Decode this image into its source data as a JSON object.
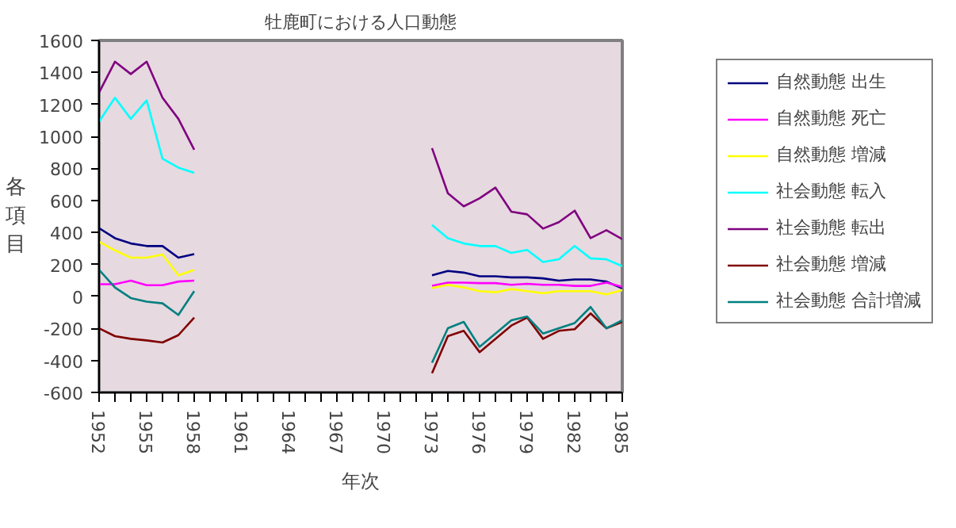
{
  "chart_data": {
    "type": "line",
    "title": "牡鹿町における人口動態",
    "xlabel": "年次",
    "ylabel": "各項目",
    "x": [
      1952,
      1953,
      1954,
      1955,
      1956,
      1957,
      1958,
      1959,
      1960,
      1961,
      1962,
      1963,
      1964,
      1965,
      1966,
      1967,
      1968,
      1969,
      1970,
      1971,
      1972,
      1973,
      1974,
      1975,
      1976,
      1977,
      1978,
      1979,
      1980,
      1981,
      1982,
      1983,
      1984,
      1985
    ],
    "xlim": [
      1952,
      1985
    ],
    "xticks": [
      1952,
      {
        "value": 1953,
        "label": null
      },
      {
        "value": 1954,
        "label": null
      },
      1955,
      {
        "value": 1956,
        "label": null
      },
      {
        "value": 1957,
        "label": null
      },
      1958,
      {
        "value": 1959,
        "label": null
      },
      {
        "value": 1960,
        "label": null
      },
      1961,
      {
        "value": 1962,
        "label": null
      },
      {
        "value": 1963,
        "label": null
      },
      1964,
      {
        "value": 1965,
        "label": null
      },
      {
        "value": 1966,
        "label": null
      },
      1967,
      {
        "value": 1968,
        "label": null
      },
      {
        "value": 1969,
        "label": null
      },
      1970,
      {
        "value": 1971,
        "label": null
      },
      {
        "value": 1972,
        "label": null
      },
      1973,
      {
        "value": 1974,
        "label": null
      },
      {
        "value": 1975,
        "label": null
      },
      1976,
      {
        "value": 1977,
        "label": null
      },
      {
        "value": 1978,
        "label": null
      },
      1979,
      {
        "value": 1980,
        "label": null
      },
      {
        "value": 1981,
        "label": null
      },
      1982,
      {
        "value": 1983,
        "label": null
      },
      {
        "value": 1984,
        "label": null
      },
      1985
    ],
    "ylim": [
      -600,
      1600
    ],
    "yticks": [
      -600,
      -400,
      -200,
      0,
      200,
      400,
      600,
      800,
      1000,
      1200,
      1400,
      1600
    ],
    "grid": false,
    "legend": "right",
    "series": [
      {
        "name": "自然動態 出生",
        "color": "#000080",
        "values": [
          427,
          364,
          331,
          315,
          315,
          242,
          265,
          null,
          null,
          null,
          null,
          null,
          null,
          null,
          null,
          null,
          null,
          null,
          null,
          null,
          null,
          132,
          159,
          149,
          126,
          126,
          119,
          119,
          113,
          99,
          106,
          106,
          93,
          50
        ]
      },
      {
        "name": "自然動態 死亡",
        "color": "#ff00ff",
        "values": [
          76,
          76,
          99,
          70,
          70,
          93,
          99,
          null,
          null,
          null,
          null,
          null,
          null,
          null,
          null,
          null,
          null,
          null,
          null,
          null,
          null,
          66,
          86,
          86,
          83,
          83,
          73,
          79,
          73,
          73,
          66,
          66,
          86,
          60
        ]
      },
      {
        "name": "自然動態 増減",
        "color": "#ffff00",
        "values": [
          341,
          288,
          242,
          242,
          262,
          132,
          166,
          null,
          null,
          null,
          null,
          null,
          null,
          null,
          null,
          null,
          null,
          null,
          null,
          null,
          null,
          53,
          73,
          56,
          33,
          26,
          46,
          33,
          20,
          33,
          33,
          33,
          13,
          40
        ]
      },
      {
        "name": "社会動態 転入",
        "color": "#00ffff",
        "values": [
          1093,
          1242,
          1110,
          1225,
          861,
          805,
          772,
          null,
          null,
          null,
          null,
          null,
          null,
          null,
          null,
          null,
          null,
          null,
          null,
          null,
          null,
          447,
          364,
          331,
          315,
          315,
          272,
          291,
          215,
          232,
          315,
          238,
          232,
          189
        ]
      },
      {
        "name": "社会動態 転出",
        "color": "#800080",
        "values": [
          1275,
          1467,
          1390,
          1467,
          1242,
          1110,
          917,
          null,
          null,
          null,
          null,
          null,
          null,
          null,
          null,
          null,
          null,
          null,
          null,
          null,
          null,
          927,
          645,
          563,
          613,
          680,
          530,
          513,
          424,
          464,
          536,
          364,
          414,
          358
        ]
      },
      {
        "name": "社会動態 増減",
        "color": "#800000",
        "values": [
          -199,
          -248,
          -265,
          -275,
          -288,
          -242,
          -132,
          null,
          null,
          null,
          null,
          null,
          null,
          null,
          null,
          null,
          null,
          null,
          null,
          null,
          null,
          -480,
          -248,
          -215,
          -348,
          -265,
          -182,
          -132,
          -265,
          -215,
          -205,
          -106,
          -199,
          -159
        ]
      },
      {
        "name": "社会動態 合計増減",
        "color": "#008080",
        "values": [
          166,
          56,
          -10,
          -33,
          -43,
          -116,
          33,
          null,
          null,
          null,
          null,
          null,
          null,
          null,
          null,
          null,
          null,
          null,
          null,
          null,
          null,
          -414,
          -199,
          -159,
          -315,
          -232,
          -149,
          -126,
          -232,
          -199,
          -166,
          -66,
          -199,
          -149
        ]
      }
    ]
  }
}
